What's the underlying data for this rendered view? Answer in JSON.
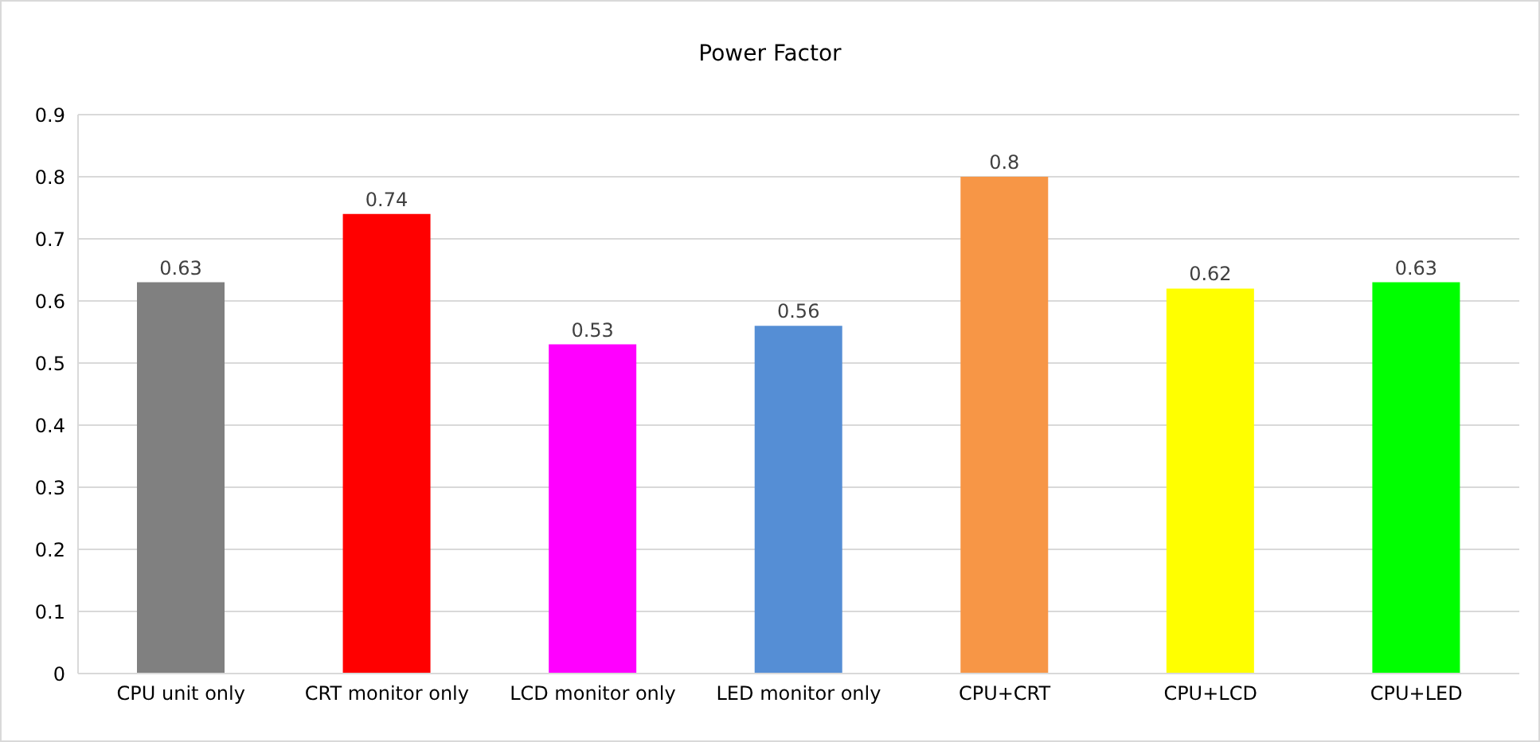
{
  "chart_data": {
    "type": "bar",
    "title": "Power Factor",
    "categories": [
      "CPU unit only",
      "CRT monitor only",
      "LCD monitor only",
      "LED monitor only",
      "CPU+CRT",
      "CPU+LCD",
      "CPU+LED"
    ],
    "values": [
      0.63,
      0.74,
      0.53,
      0.56,
      0.8,
      0.62,
      0.63
    ],
    "colors": [
      "#808080",
      "#ff0000",
      "#ff00ff",
      "#558ed5",
      "#f79646",
      "#ffff00",
      "#00ff00"
    ],
    "ylim": [
      0,
      0.9
    ],
    "yticks": [
      0,
      0.1,
      0.2,
      0.3,
      0.4,
      0.5,
      0.6,
      0.7,
      0.8,
      0.9
    ],
    "grid": "y",
    "legend": false,
    "data_labels": true
  }
}
